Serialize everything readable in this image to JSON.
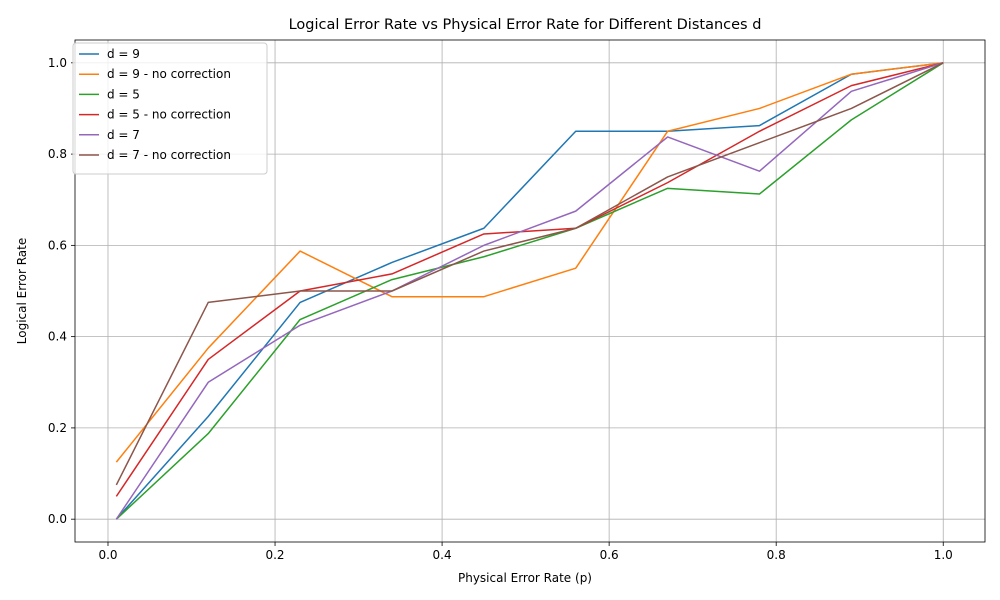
{
  "chart_data": {
    "type": "line",
    "title": "Logical Error Rate vs Physical Error Rate for Different Distances d",
    "xlabel": "Physical Error Rate (p)",
    "ylabel": "Logical Error Rate",
    "xlim": [
      -0.0395,
      1.05
    ],
    "ylim": [
      -0.05,
      1.05
    ],
    "xticks": [
      0.0,
      0.2,
      0.4,
      0.6,
      0.8,
      1.0
    ],
    "xtick_labels": [
      "0.0",
      "0.2",
      "0.4",
      "0.6",
      "0.8",
      "1.0"
    ],
    "yticks": [
      0.0,
      0.2,
      0.4,
      0.6,
      0.8,
      1.0
    ],
    "ytick_labels": [
      "0.0",
      "0.2",
      "0.4",
      "0.6",
      "0.8",
      "1.0"
    ],
    "grid": true,
    "legend_position": "upper-left",
    "x": [
      0.01,
      0.12,
      0.23,
      0.34,
      0.45,
      0.56,
      0.67,
      0.78,
      0.89,
      1.0
    ],
    "series": [
      {
        "name": "d = 9",
        "color": "#1f77b4",
        "values": [
          0.0,
          0.225,
          0.475,
          0.5625,
          0.6375,
          0.85,
          0.85,
          0.8625,
          0.975,
          1.0
        ]
      },
      {
        "name": "d = 9 - no correction",
        "color": "#ff7f0e",
        "values": [
          0.125,
          0.375,
          0.5875,
          0.4875,
          0.4875,
          0.55,
          0.85,
          0.9,
          0.975,
          1.0
        ]
      },
      {
        "name": "d = 5",
        "color": "#2ca02c",
        "values": [
          0.0,
          0.1875,
          0.4375,
          0.525,
          0.575,
          0.6375,
          0.725,
          0.7125,
          0.875,
          1.0
        ]
      },
      {
        "name": "d = 5 - no correction",
        "color": "#d62728",
        "values": [
          0.05,
          0.35,
          0.5,
          0.5375,
          0.625,
          0.6375,
          0.7375,
          0.85,
          0.95,
          1.0
        ]
      },
      {
        "name": "d = 7",
        "color": "#9467bd",
        "values": [
          0.0,
          0.3,
          0.425,
          0.5,
          0.6,
          0.675,
          0.8375,
          0.7625,
          0.9375,
          1.0
        ]
      },
      {
        "name": "d = 7 - no correction",
        "color": "#8c564b",
        "values": [
          0.075,
          0.475,
          0.5,
          0.5,
          0.5875,
          0.6375,
          0.75,
          0.825,
          0.9,
          1.0
        ]
      }
    ]
  }
}
